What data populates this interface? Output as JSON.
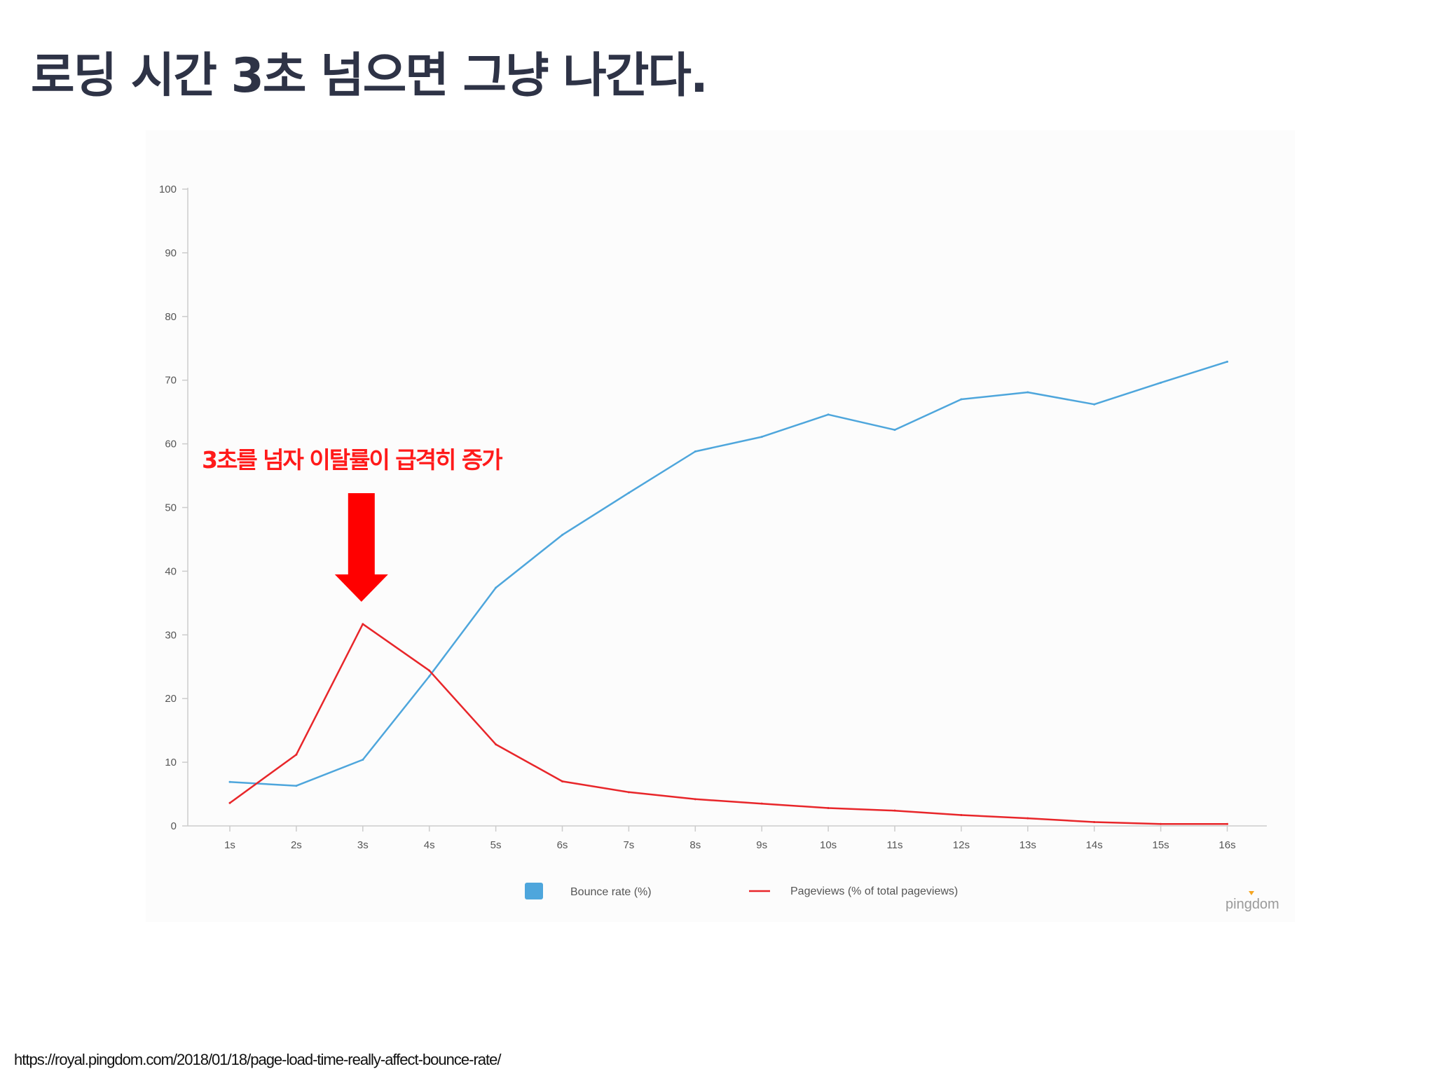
{
  "slide": {
    "title": "로딩 시간 3초 넘으면 그냥 나간다.",
    "annotation": "3초를 넘자 이탈률이 급격히 증가",
    "source_url": "https://royal.pingdom.com/2018/01/18/page-load-time-really-affect-bounce-rate/",
    "brand_logo": "pingdom"
  },
  "chart_data": {
    "type": "line",
    "categories": [
      "1s",
      "2s",
      "3s",
      "4s",
      "5s",
      "6s",
      "7s",
      "8s",
      "9s",
      "10s",
      "11s",
      "12s",
      "13s",
      "14s",
      "15s",
      "16s"
    ],
    "ylim": [
      0,
      100
    ],
    "yticks": [
      "0",
      "10",
      "20",
      "30",
      "40",
      "50",
      "60",
      "70",
      "80",
      "90",
      "100"
    ],
    "grid": false,
    "legend_position": "bottom",
    "series": [
      {
        "name": "Bounce rate  (%)",
        "color": "#4ea6dc",
        "legend_marker": "square",
        "values": [
          6.9,
          6.3,
          10.4,
          23.5,
          37.4,
          45.7,
          52.3,
          58.8,
          61.1,
          64.6,
          62.2,
          67.0,
          68.1,
          66.2,
          69.6,
          72.9
        ]
      },
      {
        "name": "Pageviews (% of total pageviews)",
        "color": "#e8262a",
        "legend_marker": "line",
        "values": [
          3.6,
          11.2,
          31.7,
          24.4,
          12.8,
          7.0,
          5.3,
          4.2,
          3.5,
          2.8,
          2.4,
          1.7,
          1.2,
          0.6,
          0.3,
          0.3
        ]
      }
    ],
    "annotation_arrow": {
      "points_to_category": "3s",
      "color": "#ff0000"
    }
  }
}
